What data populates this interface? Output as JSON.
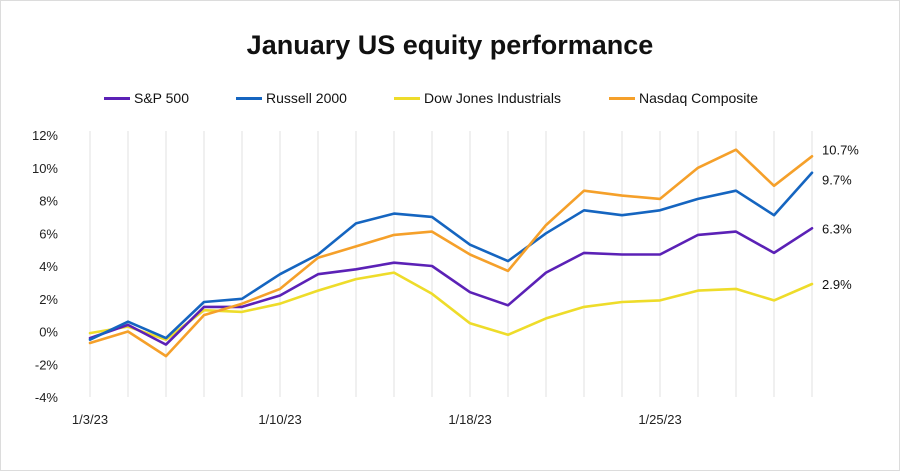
{
  "chart_data": {
    "type": "line",
    "title": "January US equity performance",
    "xlabel": "",
    "ylabel": "",
    "ylim": [
      -4,
      12
    ],
    "yticks": [
      12,
      10,
      8,
      6,
      4,
      2,
      0,
      -2,
      -4
    ],
    "ytick_labels": [
      "12%",
      "10%",
      "8%",
      "6%",
      "4%",
      "2%",
      "0%",
      "-2%",
      "-4%"
    ],
    "x": [
      "1/3/23",
      "1/4/23",
      "1/5/23",
      "1/6/23",
      "1/9/23",
      "1/10/23",
      "1/11/23",
      "1/12/23",
      "1/13/23",
      "1/17/23",
      "1/18/23",
      "1/19/23",
      "1/20/23",
      "1/23/23",
      "1/24/23",
      "1/25/23",
      "1/26/23",
      "1/27/23",
      "1/30/23",
      "1/31/23"
    ],
    "xtick_labels": [
      {
        "index": 0,
        "label": "1/3/23"
      },
      {
        "index": 5,
        "label": "1/10/23"
      },
      {
        "index": 10,
        "label": "1/18/23"
      },
      {
        "index": 15,
        "label": "1/25/23"
      }
    ],
    "grid": "x-only",
    "legend_position": "top",
    "series": [
      {
        "name": "S&P 500",
        "color": "#5b21b6",
        "end_label": "6.3%",
        "values": [
          -0.4,
          0.4,
          -0.8,
          1.5,
          1.5,
          2.2,
          3.5,
          3.8,
          4.2,
          4.0,
          2.4,
          1.6,
          3.6,
          4.8,
          4.7,
          4.7,
          5.9,
          6.1,
          4.8,
          6.3
        ]
      },
      {
        "name": "Russell 2000",
        "color": "#1565c0",
        "end_label": "9.7%",
        "values": [
          -0.5,
          0.6,
          -0.4,
          1.8,
          2.0,
          3.5,
          4.7,
          6.6,
          7.2,
          7.0,
          5.3,
          4.3,
          6.0,
          7.4,
          7.1,
          7.4,
          8.1,
          8.6,
          7.1,
          9.7
        ]
      },
      {
        "name": "Dow Jones Industrials",
        "color": "#eedc2a",
        "end_label": "2.9%",
        "values": [
          -0.1,
          0.3,
          -0.5,
          1.3,
          1.2,
          1.7,
          2.5,
          3.2,
          3.6,
          2.3,
          0.5,
          -0.2,
          0.8,
          1.5,
          1.8,
          1.9,
          2.5,
          2.6,
          1.9,
          2.9
        ]
      },
      {
        "name": "Nasdaq Composite",
        "color": "#f5a02a",
        "end_label": "10.7%",
        "values": [
          -0.7,
          0.0,
          -1.5,
          1.0,
          1.7,
          2.6,
          4.5,
          5.2,
          5.9,
          6.1,
          4.7,
          3.7,
          6.5,
          8.6,
          8.3,
          8.1,
          10.0,
          11.1,
          8.9,
          10.7
        ]
      }
    ]
  }
}
